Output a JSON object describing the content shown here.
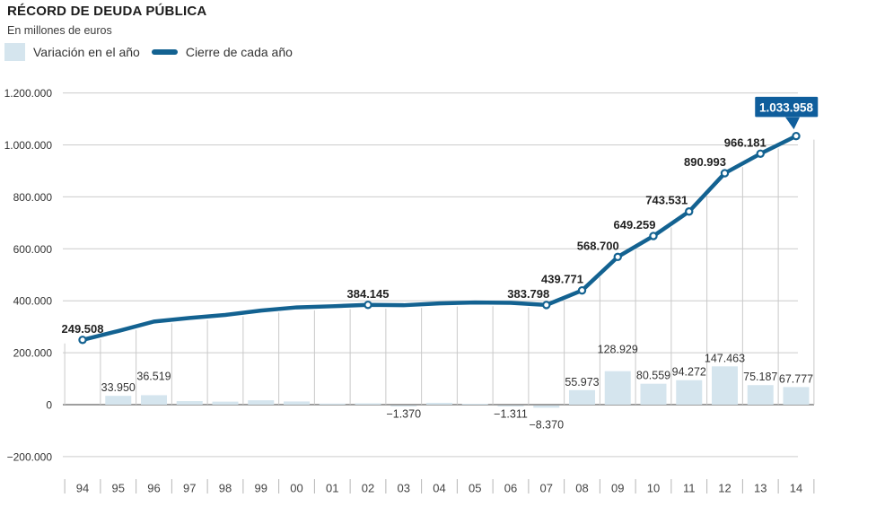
{
  "header": {
    "title": "RÉCORD DE DEUDA PÚBLICA",
    "subtitle": "En millones de euros"
  },
  "legend": {
    "bar_label": "Variación en el año",
    "line_label": "Cierre de cada año"
  },
  "colors": {
    "line": "#136291",
    "bar_fill": "#d5e5ee",
    "grid": "#cccccc",
    "drop_line": "#c9c9c9",
    "axis": "#7f7f7f",
    "tick": "#b5b5b5",
    "text": "#333333",
    "value_label": "#222222",
    "year_label": "#444444",
    "callout_bg": "#0f5e9c",
    "callout_text": "#ffffff"
  },
  "chart_data": {
    "type": "bar+line",
    "title": "RÉCORD DE DEUDA PÚBLICA",
    "subtitle": "En millones de euros",
    "unit": "millones de euros",
    "legend_position": "top-left",
    "grid": "horizontal",
    "ylim": [
      -200000,
      1200000
    ],
    "categories": [
      "94",
      "95",
      "96",
      "97",
      "98",
      "99",
      "00",
      "01",
      "02",
      "03",
      "04",
      "05",
      "06",
      "07",
      "08",
      "09",
      "10",
      "11",
      "12",
      "13",
      "14"
    ],
    "series": [
      {
        "name": "Variación en el año",
        "type": "bar",
        "values": [
          null,
          33950,
          36519,
          13745,
          11676,
          16821,
          12338,
          4326,
          5262,
          -1370,
          7113,
          3591,
          -1311,
          -8370,
          55973,
          128929,
          80559,
          94272,
          147463,
          75187,
          67777
        ]
      },
      {
        "name": "Cierre de cada año",
        "type": "line",
        "values": [
          249508,
          283458,
          319977,
          333722,
          345398,
          362219,
          374557,
          378883,
          384145,
          382775,
          389888,
          393479,
          392168,
          383798,
          439771,
          568700,
          649259,
          743531,
          890993,
          966181,
          1033958
        ]
      }
    ],
    "note": "Bars without printed labels are estimated from bar heights",
    "y_axis": {
      "ticks": [
        {
          "value": 1200000,
          "label": "1.200.000"
        },
        {
          "value": 1000000,
          "label": "1.000.000"
        },
        {
          "value": 800000,
          "label": "800.000"
        },
        {
          "value": 600000,
          "label": "600.000"
        },
        {
          "value": 400000,
          "label": "400.000"
        },
        {
          "value": 200000,
          "label": "200.000"
        },
        {
          "value": 0,
          "label": "0"
        },
        {
          "value": -200000,
          "label": "−200.000"
        }
      ]
    },
    "years": [
      {
        "x": "94",
        "close": 249508,
        "close_label": "249.508",
        "variation": null
      },
      {
        "x": "95",
        "close": 283458,
        "variation": 33950,
        "variation_label": "33.950"
      },
      {
        "x": "96",
        "close": 319977,
        "variation": 36519,
        "variation_label": "36.519"
      },
      {
        "x": "97",
        "close": 333722,
        "variation": 13745
      },
      {
        "x": "98",
        "close": 345398,
        "variation": 11676
      },
      {
        "x": "99",
        "close": 362219,
        "variation": 16821
      },
      {
        "x": "00",
        "close": 374557,
        "variation": 12338
      },
      {
        "x": "01",
        "close": 378883,
        "variation": 4326
      },
      {
        "x": "02",
        "close": 384145,
        "close_label": "384.145",
        "variation": 5262
      },
      {
        "x": "03",
        "close": 382775,
        "variation": -1370,
        "variation_label": "−1.370"
      },
      {
        "x": "04",
        "close": 389888,
        "variation": 7113
      },
      {
        "x": "05",
        "close": 393479,
        "variation": 3591
      },
      {
        "x": "06",
        "close": 392168,
        "variation": -1311,
        "variation_label": "−1.311"
      },
      {
        "x": "07",
        "close": 383798,
        "close_label": "383.798",
        "variation": -8370,
        "variation_label": "−8.370"
      },
      {
        "x": "08",
        "close": 439771,
        "close_label": "439.771",
        "variation": 55973,
        "variation_label": "55.973"
      },
      {
        "x": "09",
        "close": 568700,
        "close_label": "568.700",
        "variation": 128929,
        "variation_label": "128.929"
      },
      {
        "x": "10",
        "close": 649259,
        "close_label": "649.259",
        "variation": 80559,
        "variation_label": "80.559"
      },
      {
        "x": "11",
        "close": 743531,
        "close_label": "743.531",
        "variation": 94272,
        "variation_label": "94.272"
      },
      {
        "x": "12",
        "close": 890993,
        "close_label": "890.993",
        "variation": 147463,
        "variation_label": "147.463"
      },
      {
        "x": "13",
        "close": 966181,
        "close_label": "966.181",
        "variation": 75187,
        "variation_label": "75.187"
      },
      {
        "x": "14",
        "close": 1033958,
        "close_label": "1.033.958",
        "callout": true,
        "variation": 67777,
        "variation_label": "67.777"
      }
    ]
  }
}
